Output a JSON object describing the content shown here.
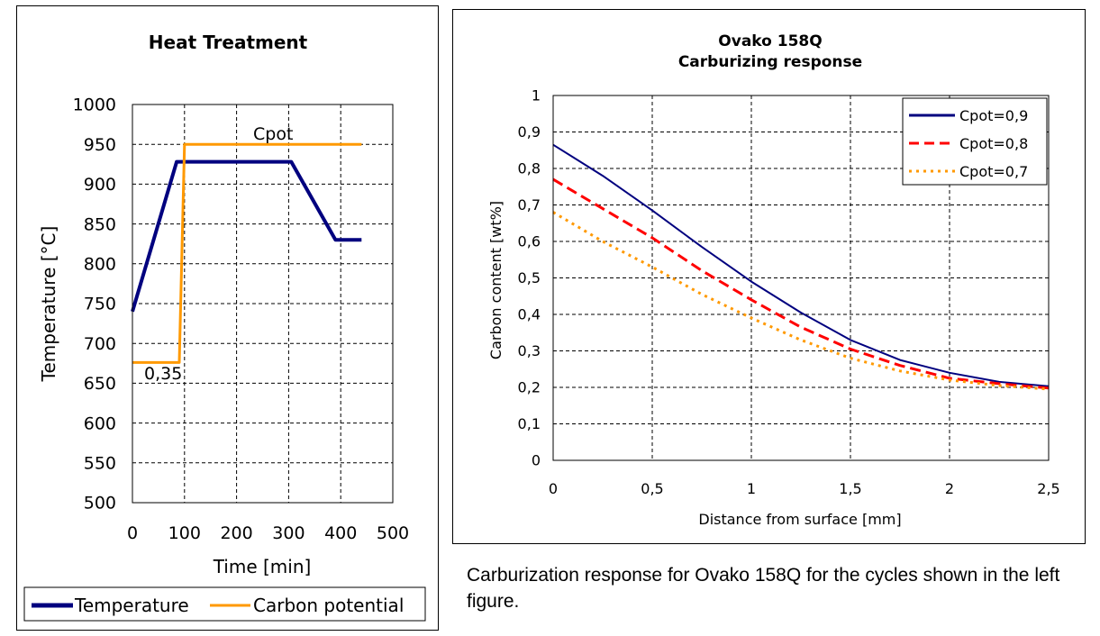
{
  "charts": {
    "left": {
      "title": "Heat Treatment",
      "xlabel": "Time [min]",
      "ylabel": "Temperature [°C]",
      "legend": [
        {
          "label": "Temperature",
          "color": "#00007f"
        },
        {
          "label": "Carbon potential",
          "color": "#ff9900"
        }
      ],
      "annotations": {
        "cpot": "Cpot",
        "low": "0,35"
      }
    },
    "right": {
      "title_line1": "Ovako 158Q",
      "title_line2": "Carburizing response",
      "xlabel": "Distance from surface [mm]",
      "ylabel": "Carbon content [wt%]",
      "legend": [
        {
          "label": "Cpot=0,9",
          "color": "#00007f"
        },
        {
          "label": "Cpot=0,8",
          "color": "#ff0000"
        },
        {
          "label": "Cpot=0,7",
          "color": "#ff9900"
        }
      ]
    }
  },
  "caption": "Carburization response for Ovako 158Q for the cycles shown in the left figure.",
  "chart_data": [
    {
      "type": "line",
      "title": "Heat Treatment",
      "xlabel": "Time [min]",
      "ylabel": "Temperature [°C]",
      "xlim": [
        0,
        500
      ],
      "ylim": [
        500,
        1000
      ],
      "xticks": [
        "0",
        "100",
        "200",
        "300",
        "400",
        "500"
      ],
      "yticks": [
        "500",
        "550",
        "600",
        "650",
        "700",
        "750",
        "800",
        "850",
        "900",
        "950",
        "1000"
      ],
      "grid": true,
      "legend_position": "bottom",
      "series": [
        {
          "name": "Temperature",
          "color": "#00007f",
          "x": [
            0,
            85,
            305,
            390,
            440
          ],
          "y": [
            740,
            928,
            928,
            830,
            830
          ]
        },
        {
          "name": "Carbon potential",
          "color": "#ff9900",
          "x": [
            0,
            90,
            100,
            440
          ],
          "y": [
            676,
            676,
            950,
            950
          ]
        }
      ],
      "annotations": [
        {
          "text": "Cpot",
          "x": 270,
          "y": 960
        },
        {
          "text": "0,35",
          "x": 20,
          "y": 660
        }
      ]
    },
    {
      "type": "line",
      "title": "Ovako 158Q Carburizing response",
      "xlabel": "Distance from surface [mm]",
      "ylabel": "Carbon content [wt%]",
      "xlim": [
        0,
        2.5
      ],
      "ylim": [
        0,
        1
      ],
      "xticks": [
        "0",
        "0,5",
        "1",
        "1,5",
        "2",
        "2,5"
      ],
      "yticks": [
        "0",
        "0,1",
        "0,2",
        "0,3",
        "0,4",
        "0,5",
        "0,6",
        "0,7",
        "0,8",
        "0,9",
        "1"
      ],
      "grid": true,
      "legend_position": "top-right",
      "series": [
        {
          "name": "Cpot=0,9",
          "color": "#00007f",
          "style": "solid",
          "x": [
            0,
            0.25,
            0.5,
            0.75,
            1.0,
            1.25,
            1.5,
            1.75,
            2.0,
            2.25,
            2.5
          ],
          "y": [
            0.865,
            0.78,
            0.685,
            0.585,
            0.49,
            0.405,
            0.33,
            0.275,
            0.24,
            0.215,
            0.203
          ]
        },
        {
          "name": "Cpot=0,8",
          "color": "#ff0000",
          "style": "dashed",
          "x": [
            0,
            0.25,
            0.5,
            0.75,
            1.0,
            1.25,
            1.5,
            1.75,
            2.0,
            2.25,
            2.5
          ],
          "y": [
            0.77,
            0.69,
            0.61,
            0.52,
            0.44,
            0.365,
            0.305,
            0.26,
            0.225,
            0.21,
            0.198
          ]
        },
        {
          "name": "Cpot=0,7",
          "color": "#ff9900",
          "style": "dotted",
          "x": [
            0,
            0.25,
            0.5,
            0.75,
            1.0,
            1.25,
            1.5,
            1.75,
            2.0,
            2.25,
            2.5
          ],
          "y": [
            0.68,
            0.6,
            0.53,
            0.455,
            0.39,
            0.33,
            0.28,
            0.245,
            0.22,
            0.205,
            0.195
          ]
        }
      ]
    }
  ]
}
